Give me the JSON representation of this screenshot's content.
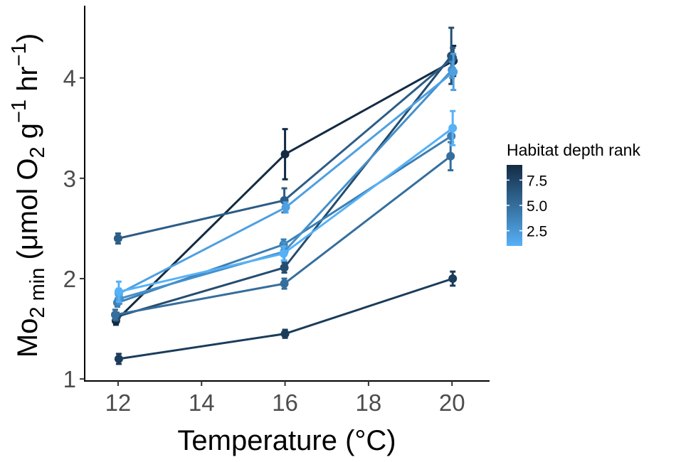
{
  "chart_data": {
    "type": "line",
    "xlabel": "Temperature (°C)",
    "ylabel": {
      "base": "Mo",
      "sub1": "2 min",
      "mid": " (μmol O",
      "sub2": "2",
      "mid2": " g",
      "sup1": "−1",
      "mid3": " hr",
      "sup2": "−1",
      "end": ")"
    },
    "xlim": [
      11.2,
      20.9
    ],
    "ylim": [
      0.98,
      4.72
    ],
    "x_ticks": [
      12,
      14,
      16,
      18,
      20
    ],
    "x_tick_labels": [
      "12",
      "14",
      "16",
      "18",
      "20"
    ],
    "y_ticks": [
      1,
      2,
      3,
      4
    ],
    "y_tick_labels": [
      "1",
      "2",
      "3",
      "4"
    ],
    "grid": false,
    "legend": {
      "title": "Habitat depth rank",
      "placement": "right",
      "type": "colorbar",
      "range": [
        1,
        9
      ],
      "ticks": [
        7.5,
        5.0,
        2.5
      ],
      "tick_labels": [
        "7.5",
        "5.0",
        "2.5"
      ],
      "color_low": "#56B1F7",
      "color_high": "#132B43"
    },
    "x_dodge": 0.05,
    "series": [
      {
        "rank": 9,
        "x": [
          12,
          16,
          20
        ],
        "y": [
          1.58,
          3.24,
          4.17
        ],
        "err": [
          0.04,
          0.25,
          0.15
        ],
        "x_off": [
          -3,
          0,
          2
        ]
      },
      {
        "rank": 8,
        "x": [
          12,
          16,
          20
        ],
        "y": [
          1.2,
          1.45,
          2.0
        ],
        "err": [
          0.05,
          0.04,
          0.07
        ],
        "x_off": [
          1,
          0,
          1
        ]
      },
      {
        "rank": 7,
        "x": [
          12,
          16,
          20
        ],
        "y": [
          1.62,
          2.11,
          4.22
        ],
        "err": [
          0.04,
          0.05,
          0.28
        ],
        "x_off": [
          -2,
          -1,
          -1
        ]
      },
      {
        "rank": 6,
        "x": [
          12,
          16,
          20
        ],
        "y": [
          2.4,
          2.78,
          4.2
        ],
        "err": [
          0.05,
          0.12,
          0.1
        ],
        "x_off": [
          0,
          -1,
          1
        ]
      },
      {
        "rank": 5,
        "x": [
          12,
          16,
          20
        ],
        "y": [
          1.64,
          1.95,
          3.22
        ],
        "err": [
          0.05,
          0.05,
          0.14
        ],
        "x_off": [
          -4,
          -1,
          -2
        ]
      },
      {
        "rank": 4,
        "x": [
          12,
          16,
          20
        ],
        "y": [
          1.76,
          2.34,
          3.42
        ],
        "err": [
          0.04,
          0.05,
          0.06
        ],
        "x_off": [
          -1,
          -2,
          -1
        ]
      },
      {
        "rank": 3,
        "x": [
          12,
          16,
          20
        ],
        "y": [
          1.8,
          2.27,
          4.08
        ],
        "err": [
          0.05,
          0.09,
          0.08
        ],
        "x_off": [
          2,
          -1,
          0
        ]
      },
      {
        "rank": 2,
        "x": [
          12,
          16,
          20
        ],
        "y": [
          1.85,
          2.71,
          4.06
        ],
        "err": [
          0.05,
          0.05,
          0.18
        ],
        "x_off": [
          1,
          1,
          2
        ]
      },
      {
        "rank": 1,
        "x": [
          12,
          16,
          20
        ],
        "y": [
          1.87,
          2.25,
          3.5
        ],
        "err": [
          0.1,
          0.07,
          0.17
        ],
        "x_off": [
          1,
          -2,
          1
        ]
      }
    ]
  }
}
